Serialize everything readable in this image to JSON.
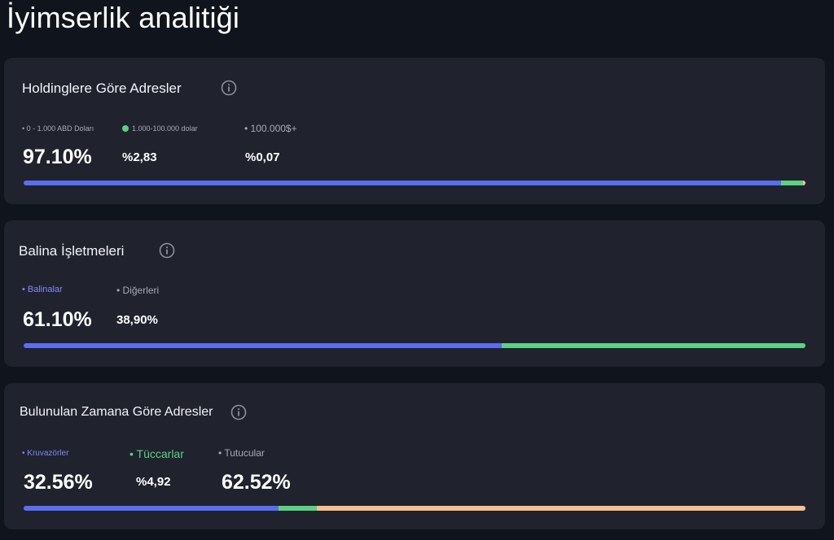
{
  "page": {
    "title": "İyimserlik analitiği"
  },
  "colors": {
    "blue": "#5a6ef2",
    "green": "#5bd283",
    "orange": "#f6c08e"
  },
  "cards": [
    {
      "title": "Holdinglere Göre Adresler",
      "legend": [
        "• 0 - 1.000 ABD Doları",
        "1.000-100.000 dolar",
        "• 100.000$+"
      ],
      "values": [
        "97.10%",
        "%2,83",
        "%0,07"
      ],
      "bar": [
        97.1,
        2.83,
        0.07
      ]
    },
    {
      "title": "Balina İşletmeleri",
      "legend": [
        "• Balinalar",
        "• Diğerleri"
      ],
      "values": [
        "61.10%",
        "38,90%"
      ],
      "bar": [
        61.1,
        38.9
      ]
    },
    {
      "title": "Bulunulan Zamana Göre Adresler",
      "legend": [
        "• Kruvazörler",
        "• Tüccarlar",
        "• Tutucular"
      ],
      "values": [
        "32.56%",
        "%4,92",
        "62.52%"
      ],
      "bar": [
        32.56,
        4.92,
        62.52
      ]
    }
  ]
}
